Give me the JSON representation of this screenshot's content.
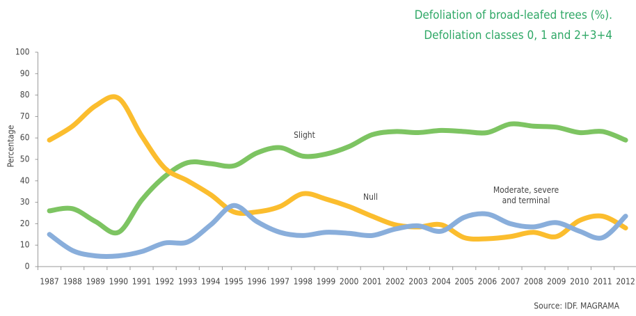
{
  "chart_data": {
    "type": "line",
    "title": [
      "Defoliation of broad-leafed trees (%).",
      "Defoliation classes 0, 1 and 2+3+4"
    ],
    "y_label": "Percentage",
    "source": "Source: IDF. MAGRAMA",
    "categories": [
      "1987",
      "1988",
      "1989",
      "1990",
      "1991",
      "1992",
      "1993",
      "1994",
      "1995",
      "1996",
      "1997",
      "1998",
      "1999",
      "2000",
      "2001",
      "2002",
      "2003",
      "2004",
      "2005",
      "2006",
      "2007",
      "2008",
      "2009",
      "2010",
      "2011",
      "2012"
    ],
    "series": [
      {
        "name": "Slight",
        "color": "#7dc462",
        "values": [
          26,
          27,
          21,
          16,
          31,
          42,
          48.5,
          48,
          47,
          53,
          55.5,
          51.5,
          52.5,
          56,
          61.5,
          63,
          62.5,
          63.5,
          63,
          62.5,
          66.5,
          65.5,
          65,
          62.5,
          63,
          59
        ]
      },
      {
        "name": "Null",
        "color": "#fbbd2e",
        "values": [
          59,
          65.5,
          75,
          78.5,
          61,
          46,
          40,
          33.5,
          25.5,
          25.5,
          28,
          34,
          31.5,
          28,
          23.5,
          19.5,
          18.5,
          19.5,
          13.5,
          13,
          14,
          16,
          14,
          21.5,
          23.5,
          18
        ]
      },
      {
        "name": "Moderate, severe and terminal",
        "color": "#89aedb",
        "values": [
          15,
          7.5,
          5,
          5,
          7,
          11,
          11.5,
          19.5,
          28.5,
          21,
          16,
          14.5,
          16,
          15.5,
          14.5,
          17.5,
          19,
          16.5,
          23,
          24.5,
          20,
          18.5,
          20.5,
          16.5,
          13.5,
          23.5
        ]
      }
    ],
    "ylim": [
      0,
      100
    ],
    "yticks": [
      0,
      10,
      20,
      30,
      40,
      50,
      60,
      70,
      80,
      90,
      100
    ]
  }
}
